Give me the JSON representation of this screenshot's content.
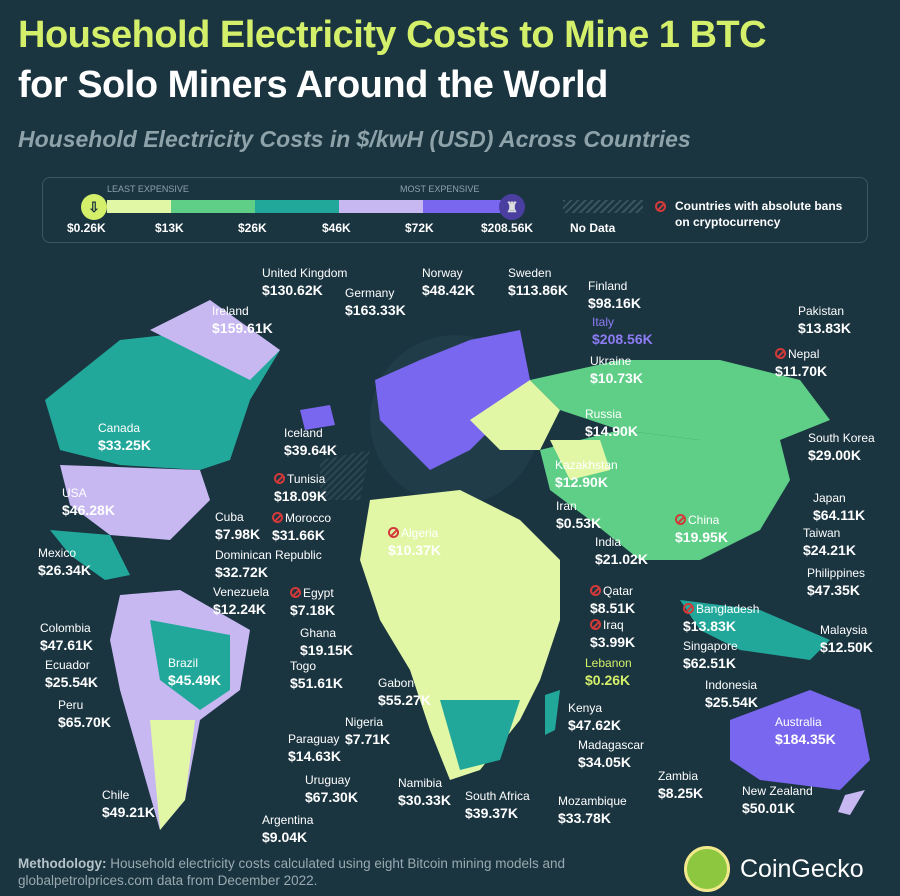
{
  "title_line1": "Household Electricity Costs to Mine 1 BTC",
  "title_line2": "for Solo Miners Around the World",
  "subtitle": "Household Electricity Costs in $/kwH (USD) Across Countries",
  "legend": {
    "least": "LEAST EXPENSIVE",
    "most": "MOST EXPENSIVE",
    "ticks": [
      "$0.26K",
      "$13K",
      "$26K",
      "$46K",
      "$72K",
      "$208.56K"
    ],
    "no_data": "No Data",
    "ban_label": "Countries with absolute bans on cryptocurrency",
    "colors": [
      "#e2f7a6",
      "#5fcf88",
      "#22a89a",
      "#c7b8f2",
      "#7a67ef"
    ]
  },
  "countries": [
    {
      "name": "United Kingdom",
      "value": "$130.62K"
    },
    {
      "name": "Germany",
      "value": "$163.33K"
    },
    {
      "name": "Norway",
      "value": "$48.42K"
    },
    {
      "name": "Sweden",
      "value": "$113.86K"
    },
    {
      "name": "Finland",
      "value": "$98.16K"
    },
    {
      "name": "Ireland",
      "value": "$159.61K"
    },
    {
      "name": "Italy",
      "value": "$208.56K"
    },
    {
      "name": "Pakistan",
      "value": "$13.83K"
    },
    {
      "name": "Nepal",
      "value": "$11.70K",
      "banned": true
    },
    {
      "name": "Ukraine",
      "value": "$10.73K"
    },
    {
      "name": "Russia",
      "value": "$14.90K"
    },
    {
      "name": "Canada",
      "value": "$33.25K"
    },
    {
      "name": "Iceland",
      "value": "$39.64K"
    },
    {
      "name": "South Korea",
      "value": "$29.00K"
    },
    {
      "name": "Tunisia",
      "value": "$18.09K",
      "banned": true
    },
    {
      "name": "Kazakhstan",
      "value": "$12.90K"
    },
    {
      "name": "USA",
      "value": "$46.28K"
    },
    {
      "name": "Cuba",
      "value": "$7.98K"
    },
    {
      "name": "Morocco",
      "value": "$31.66K",
      "banned": true
    },
    {
      "name": "Japan",
      "value": "$64.11K"
    },
    {
      "name": "Iran",
      "value": "$0.53K"
    },
    {
      "name": "Algeria",
      "value": "$10.37K",
      "banned": true
    },
    {
      "name": "China",
      "value": "$19.95K",
      "banned": true
    },
    {
      "name": "Mexico",
      "value": "$26.34K"
    },
    {
      "name": "Dominican Republic",
      "value": "$32.72K"
    },
    {
      "name": "India",
      "value": "$21.02K"
    },
    {
      "name": "Taiwan",
      "value": "$24.21K"
    },
    {
      "name": "Venezuela",
      "value": "$12.24K"
    },
    {
      "name": "Egypt",
      "value": "$7.18K",
      "banned": true
    },
    {
      "name": "Qatar",
      "value": "$8.51K",
      "banned": true
    },
    {
      "name": "Bangladesh",
      "value": "$13.83K",
      "banned": true
    },
    {
      "name": "Philippines",
      "value": "$47.35K"
    },
    {
      "name": "Colombia",
      "value": "$47.61K"
    },
    {
      "name": "Ghana",
      "value": "$19.15K"
    },
    {
      "name": "Iraq",
      "value": "$3.99K",
      "banned": true
    },
    {
      "name": "Singapore",
      "value": "$62.51K"
    },
    {
      "name": "Malaysia",
      "value": "$12.50K"
    },
    {
      "name": "Ecuador",
      "value": "$25.54K"
    },
    {
      "name": "Togo",
      "value": "$51.61K"
    },
    {
      "name": "Brazil",
      "value": "$45.49K"
    },
    {
      "name": "Lebanon",
      "value": "$0.26K"
    },
    {
      "name": "Peru",
      "value": "$65.70K"
    },
    {
      "name": "Gabon",
      "value": "$55.27K"
    },
    {
      "name": "Indonesia",
      "value": "$25.54K"
    },
    {
      "name": "Nigeria",
      "value": "$7.71K"
    },
    {
      "name": "Kenya",
      "value": "$47.62K"
    },
    {
      "name": "Paraguay",
      "value": "$14.63K"
    },
    {
      "name": "Madagascar",
      "value": "$34.05K"
    },
    {
      "name": "Australia",
      "value": "$184.35K"
    },
    {
      "name": "Zambia",
      "value": "$8.25K"
    },
    {
      "name": "Uruguay",
      "value": "$67.30K"
    },
    {
      "name": "Chile",
      "value": "$49.21K"
    },
    {
      "name": "Namibia",
      "value": "$30.33K"
    },
    {
      "name": "South Africa",
      "value": "$39.37K"
    },
    {
      "name": "Mozambique",
      "value": "$33.78K"
    },
    {
      "name": "New Zealand",
      "value": "$50.01K"
    },
    {
      "name": "Argentina",
      "value": "$9.04K"
    }
  ],
  "footer": {
    "label": "Methodology:",
    "text": "Household electricity costs calculated using eight Bitcoin mining models and globalpetrolprices.com data from December 2022."
  },
  "brand": "CoinGecko"
}
